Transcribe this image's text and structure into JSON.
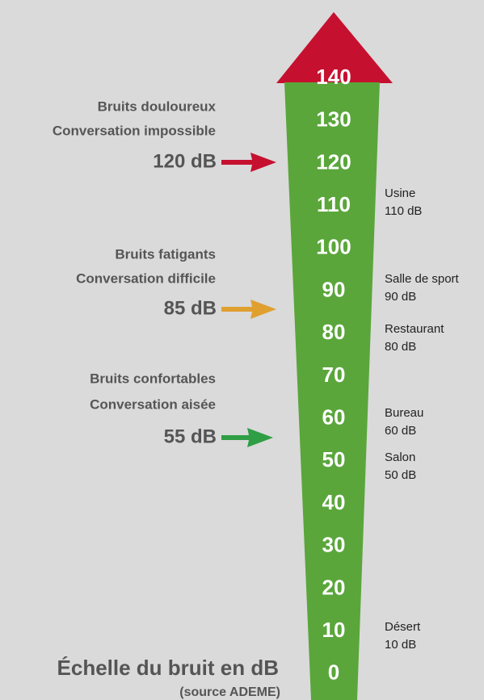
{
  "title": "Échelle du bruit en dB",
  "source": "(source ADEME)",
  "scale": [
    140,
    130,
    120,
    110,
    100,
    90,
    80,
    70,
    60,
    50,
    40,
    30,
    20,
    10,
    0
  ],
  "zones": [
    {
      "lines": [
        "Bruits douloureux",
        "Conversation impossible"
      ],
      "level": "120 dB"
    },
    {
      "lines": [
        "Bruits fatigants",
        "Conversation difficile"
      ],
      "level": "85 dB"
    },
    {
      "lines": [
        "Bruits confortables",
        "Conversation aisée"
      ],
      "level": "55 dB"
    }
  ],
  "examples": [
    {
      "name": "Usine",
      "level": "110 dB"
    },
    {
      "name": "Salle de sport",
      "level": "90 dB"
    },
    {
      "name": "Restaurant",
      "level": "80 dB"
    },
    {
      "name": "Bureau",
      "level": "60 dB"
    },
    {
      "name": "Salon",
      "level": "50 dB"
    },
    {
      "name": "Désert",
      "level": "10 dB"
    }
  ]
}
